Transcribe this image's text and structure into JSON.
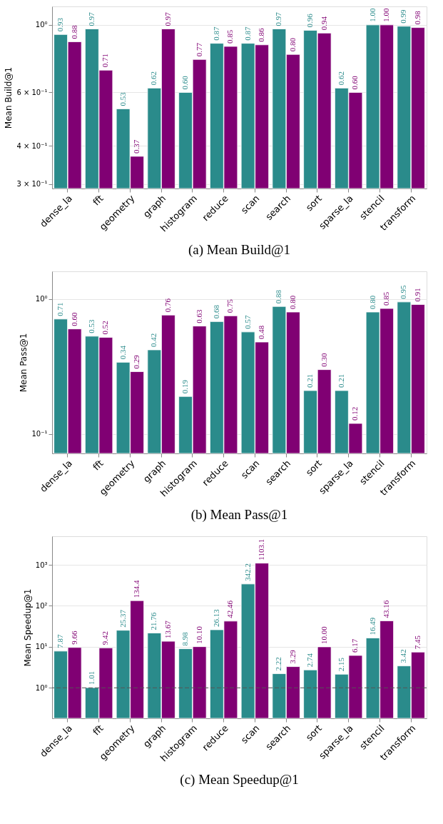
{
  "chart_data": [
    {
      "type": "bar",
      "title": "(a) Mean Build@1",
      "ylabel": "Mean Build@1",
      "log": "y",
      "grid": "y",
      "legend": false,
      "categories": [
        "dense_la",
        "fft",
        "geometry",
        "graph",
        "histogram",
        "reduce",
        "scan",
        "search",
        "sort",
        "sparse_la",
        "stencil",
        "transform"
      ],
      "ylim": [
        0.29,
        1.15
      ],
      "yticks": [
        {
          "value": 0.3,
          "label": "3 × 10⁻¹"
        },
        {
          "value": 0.4,
          "label": "4 × 10⁻¹"
        },
        {
          "value": 0.6,
          "label": "6 × 10⁻¹"
        },
        {
          "value": 1,
          "label": "10⁰"
        }
      ],
      "series": [
        {
          "color": "#2a8b8b",
          "values": [
            0.93,
            0.97,
            0.53,
            0.62,
            0.6,
            0.87,
            0.87,
            0.97,
            0.96,
            0.62,
            1.0,
            0.99
          ],
          "value_labels": [
            "0.93",
            "0.97",
            "0.53",
            "0.62",
            "0.60",
            "0.87",
            "0.87",
            "0.97",
            "0.96",
            "0.62",
            "1.00",
            "0.99"
          ]
        },
        {
          "color": "#800073",
          "values": [
            0.88,
            0.71,
            0.37,
            0.97,
            0.77,
            0.85,
            0.86,
            0.8,
            0.94,
            0.6,
            1.0,
            0.98
          ],
          "value_labels": [
            "0.88",
            "0.71",
            "0.37",
            "0.97",
            "0.77",
            "0.85",
            "0.86",
            "0.80",
            "0.94",
            "0.60",
            "1.00",
            "0.98"
          ]
        }
      ]
    },
    {
      "type": "bar",
      "title": "(b) Mean Pass@1",
      "ylabel": "Mean Pass@1",
      "log": "y",
      "grid": "y",
      "legend": false,
      "categories": [
        "dense_la",
        "fft",
        "geometry",
        "graph",
        "histogram",
        "reduce",
        "scan",
        "search",
        "sort",
        "sparse_la",
        "stencil",
        "transform"
      ],
      "ylim": [
        0.072,
        1.6
      ],
      "yticks": [
        {
          "value": 0.1,
          "label": "10⁻¹"
        },
        {
          "value": 1,
          "label": "10⁰"
        }
      ],
      "series": [
        {
          "color": "#2a8b8b",
          "values": [
            0.71,
            0.53,
            0.34,
            0.42,
            0.19,
            0.68,
            0.57,
            0.88,
            0.21,
            0.21,
            0.8,
            0.95
          ],
          "value_labels": [
            "0.71",
            "0.53",
            "0.34",
            "0.42",
            "0.19",
            "0.68",
            "0.57",
            "0.88",
            "0.21",
            "0.21",
            "0.80",
            "0.95"
          ]
        },
        {
          "color": "#800073",
          "values": [
            0.6,
            0.52,
            0.29,
            0.76,
            0.63,
            0.75,
            0.48,
            0.8,
            0.3,
            0.12,
            0.85,
            0.91
          ],
          "value_labels": [
            "0.60",
            "0.52",
            "0.29",
            "0.76",
            "0.63",
            "0.75",
            "0.48",
            "0.80",
            "0.30",
            "0.12",
            "0.85",
            "0.91"
          ]
        }
      ]
    },
    {
      "type": "bar",
      "title": "(c) Mean Speedup@1",
      "ylabel": "Mean Speedup@1",
      "log": "y",
      "grid": "y",
      "legend": false,
      "categories": [
        "dense_la",
        "fft",
        "geometry",
        "graph",
        "histogram",
        "reduce",
        "scan",
        "search",
        "sort",
        "sparse_la",
        "stencil",
        "transform"
      ],
      "ylim": [
        0.18,
        5000
      ],
      "yticks": [
        {
          "value": 1,
          "label": "10⁰"
        },
        {
          "value": 10,
          "label": "10¹"
        },
        {
          "value": 100,
          "label": "10²"
        },
        {
          "value": 1000,
          "label": "10³"
        }
      ],
      "ref_lines": [
        {
          "axis": "y",
          "value": 1,
          "color": "#555555",
          "line_style": "dashed"
        }
      ],
      "series": [
        {
          "color": "#2a8b8b",
          "values": [
            7.87,
            1.01,
            25.37,
            21.76,
            8.98,
            26.13,
            342.2,
            2.22,
            2.74,
            2.15,
            16.49,
            3.42
          ],
          "value_labels": [
            "7.87",
            "1.01",
            "25.37",
            "21.76",
            "8.98",
            "26.13",
            "342.2",
            "2.22",
            "2.74",
            "2.15",
            "16.49",
            "3.42"
          ]
        },
        {
          "color": "#800073",
          "values": [
            9.66,
            9.42,
            134.4,
            13.67,
            10.1,
            42.46,
            1103.1,
            3.29,
            10.0,
            6.17,
            43.16,
            7.45
          ],
          "value_labels": [
            "9.66",
            "9.42",
            "134.4",
            "13.67",
            "10.10",
            "42.46",
            "1103.1",
            "3.29",
            "10.00",
            "6.17",
            "43.16",
            "7.45"
          ]
        }
      ]
    }
  ]
}
